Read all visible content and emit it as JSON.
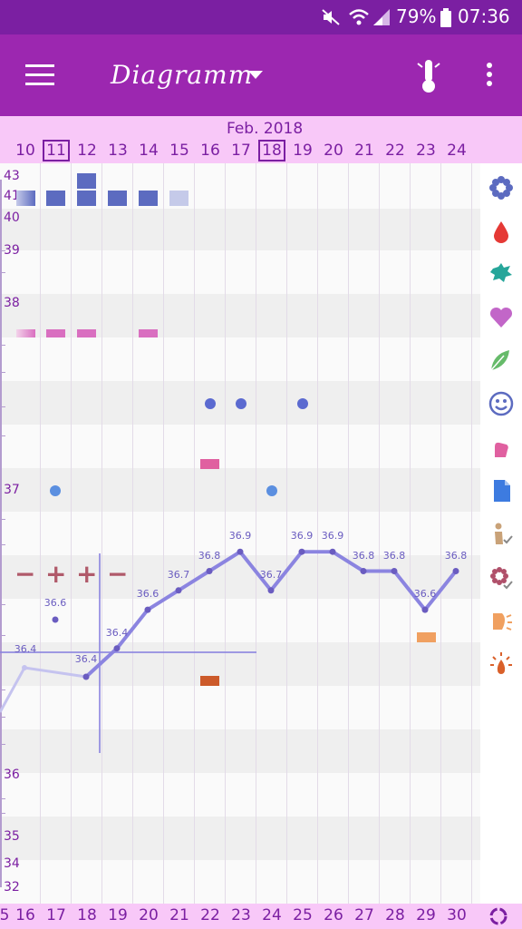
{
  "status_bar": {
    "battery": "79%",
    "time": "07:36"
  },
  "toolbar": {
    "title": "Diagramm"
  },
  "header": {
    "month": "Feb. 2018",
    "days": [
      "10",
      "11",
      "12",
      "13",
      "14",
      "15",
      "16",
      "17",
      "18",
      "19",
      "20",
      "21",
      "22",
      "23",
      "24"
    ],
    "boxed": [
      "11",
      "18"
    ]
  },
  "y_axis": {
    "labels": [
      "43",
      "41",
      "40",
      "39",
      "38",
      "37",
      "36",
      "35",
      "34",
      "32"
    ]
  },
  "footer": {
    "days": [
      "16",
      "17",
      "18",
      "19",
      "20",
      "21",
      "22",
      "23",
      "24",
      "25",
      "26",
      "27",
      "28",
      "29",
      "30"
    ]
  },
  "temperature": {
    "label_upper": "36.4",
    "label_lower": "36.4",
    "isolated": "36.6",
    "points": [
      {
        "col": 2,
        "value": "36.4"
      },
      {
        "col": 3,
        "value": "36.4"
      },
      {
        "col": 4,
        "value": "36.6"
      },
      {
        "col": 5,
        "value": "36.7"
      },
      {
        "col": 6,
        "value": "36.8"
      },
      {
        "col": 7,
        "value": "36.9"
      },
      {
        "col": 8,
        "value": "36.7"
      },
      {
        "col": 9,
        "value": "36.9"
      },
      {
        "col": 10,
        "value": "36.9"
      },
      {
        "col": 11,
        "value": "36.8"
      },
      {
        "col": 12,
        "value": "36.8"
      },
      {
        "col": 13,
        "value": "36.6"
      },
      {
        "col": 14,
        "value": "36.8"
      }
    ]
  },
  "markers": {
    "minus": "−",
    "plus": "+"
  },
  "colors": {
    "primary_dark": "#7b1fa2",
    "primary": "#9c27b0",
    "header_bg": "#f8c8f8",
    "line": "#8b84e0",
    "square": "#5c6bc0",
    "pink": "#d96fc0",
    "dot": "#5b6ad0"
  },
  "sidebar": {
    "icons": [
      "flower-icon",
      "drop-icon",
      "splash-icon",
      "heart-icon",
      "leaves-icon",
      "smiley-icon",
      "hand-icon",
      "document-icon",
      "person-check-icon",
      "flower-check-icon",
      "pill-icon",
      "candle-icon"
    ]
  }
}
